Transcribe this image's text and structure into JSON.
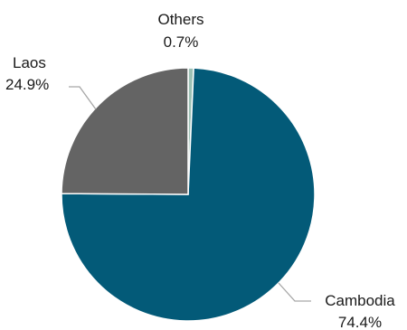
{
  "chart_data": {
    "type": "pie",
    "slices": [
      {
        "label": "Cambodia",
        "value": 74.4,
        "value_label": "74.4%",
        "color": "#035a78"
      },
      {
        "label": "Laos",
        "value": 24.9,
        "value_label": "24.9%",
        "color": "#646464"
      },
      {
        "label": "Others",
        "value": 0.7,
        "value_label": "0.7%",
        "color": "#9cc0b4"
      }
    ],
    "start": "12 o'clock, clockwise",
    "slice_border_color": "#ffffff",
    "leader_line_color": "#a6a6a6"
  }
}
